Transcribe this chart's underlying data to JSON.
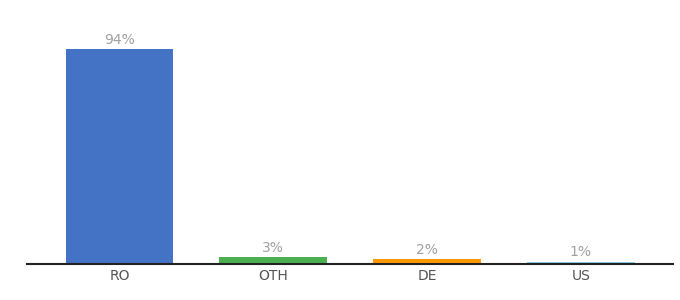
{
  "title": "",
  "categories": [
    "RO",
    "OTH",
    "DE",
    "US"
  ],
  "values": [
    94,
    3,
    2,
    1
  ],
  "bar_colors": [
    "#4472c4",
    "#4caf50",
    "#ff9800",
    "#87ceeb"
  ],
  "value_labels": [
    "94%",
    "3%",
    "2%",
    "1%"
  ],
  "label_color": "#a0a0a0",
  "label_fontsize": 10,
  "tick_fontsize": 10,
  "tick_color": "#555555",
  "background_color": "#ffffff",
  "ylim": [
    0,
    105
  ],
  "bar_width": 0.7,
  "title_fontsize": 11,
  "title_color": "#555555"
}
